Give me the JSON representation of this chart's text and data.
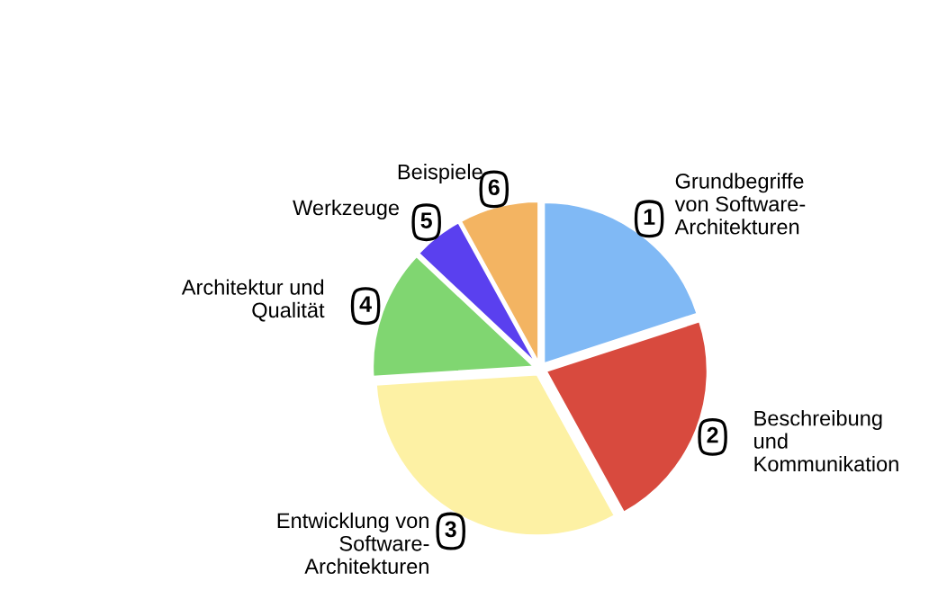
{
  "chart_data": {
    "type": "pie",
    "categories": [
      "Grundbegriffe\nvon Software-\nArchitekturen",
      "Beschreibung\nund\nKommunikation",
      "Entwicklung von\nSoftware-\nArchitekturen",
      "Architektur und\nQualität",
      "Werkzeuge",
      "Beispiele"
    ],
    "values": [
      20,
      22,
      32,
      13,
      5,
      8
    ],
    "colors": [
      "#80b9f5",
      "#d84a3e",
      "#fdf1a4",
      "#80d671",
      "#5a40ef",
      "#f3b462"
    ],
    "annotations": [
      "1",
      "2",
      "3",
      "4",
      "5",
      "6"
    ]
  }
}
